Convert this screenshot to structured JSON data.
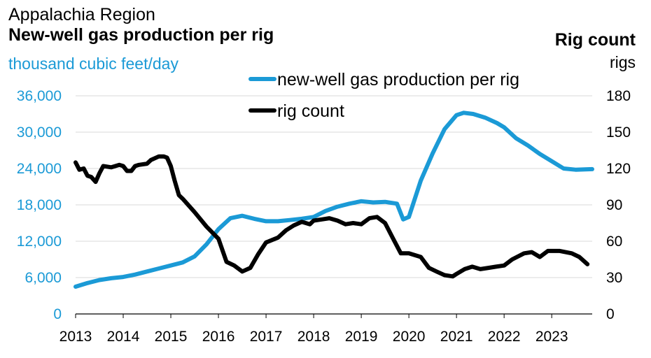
{
  "header": {
    "region": "Appalachia Region",
    "title": "New-well gas production per rig",
    "left_unit": "thousand cubic feet/day",
    "right_title": "Rig count",
    "right_unit": "rigs"
  },
  "colors": {
    "production": "#1b9ad6",
    "rigs": "#000000",
    "left_axis_text": "#1b9ad6",
    "grid": "#d9d9d9"
  },
  "chart_data": {
    "type": "line",
    "title": "New-well gas production per rig",
    "xlabel": "",
    "ylabel": "thousand cubic feet/day",
    "y2label": "rigs",
    "xlim": [
      2013.0,
      2023.85
    ],
    "ylim": [
      0,
      36000
    ],
    "y2lim": [
      0,
      180
    ],
    "x_ticks": [
      2013,
      2014,
      2015,
      2016,
      2017,
      2018,
      2019,
      2020,
      2021,
      2022,
      2023
    ],
    "x_tick_labels": [
      "2013",
      "2014",
      "2015",
      "2016",
      "2017",
      "2018",
      "2019",
      "2020",
      "2021",
      "2022",
      "2023"
    ],
    "y_ticks": [
      0,
      6000,
      12000,
      18000,
      24000,
      30000,
      36000
    ],
    "y_tick_labels": [
      "0",
      "6,000",
      "12,000",
      "18,000",
      "24,000",
      "30,000",
      "36,000"
    ],
    "y2_ticks": [
      0,
      30,
      60,
      90,
      120,
      150,
      180
    ],
    "y2_tick_labels": [
      "0",
      "30",
      "60",
      "90",
      "120",
      "150",
      "180"
    ],
    "legend_position": "top-center",
    "series": [
      {
        "name": "new-well gas production per rig",
        "axis": "left",
        "x": [
          2013.0,
          2013.25,
          2013.5,
          2013.75,
          2014.0,
          2014.25,
          2014.5,
          2014.75,
          2015.0,
          2015.25,
          2015.5,
          2015.75,
          2016.0,
          2016.25,
          2016.5,
          2016.75,
          2017.0,
          2017.25,
          2017.5,
          2017.75,
          2018.0,
          2018.25,
          2018.5,
          2018.75,
          2019.0,
          2019.25,
          2019.5,
          2019.75,
          2019.88,
          2020.0,
          2020.25,
          2020.5,
          2020.75,
          2021.0,
          2021.15,
          2021.35,
          2021.6,
          2021.85,
          2022.0,
          2022.25,
          2022.5,
          2022.75,
          2023.0,
          2023.25,
          2023.5,
          2023.85
        ],
        "values": [
          4500,
          5100,
          5600,
          5900,
          6100,
          6500,
          7000,
          7500,
          8000,
          8500,
          9500,
          11500,
          14000,
          15800,
          16200,
          15700,
          15300,
          15300,
          15500,
          15700,
          16000,
          17000,
          17700,
          18200,
          18600,
          18400,
          18500,
          18200,
          15600,
          16000,
          22000,
          26500,
          30500,
          32800,
          33200,
          33000,
          32400,
          31500,
          30800,
          29000,
          27800,
          26400,
          25200,
          24000,
          23800,
          23900
        ]
      },
      {
        "name": "rig count",
        "axis": "right",
        "x": [
          2013.0,
          2013.08,
          2013.17,
          2013.25,
          2013.33,
          2013.42,
          2013.5,
          2013.58,
          2013.75,
          2013.92,
          2014.0,
          2014.08,
          2014.17,
          2014.25,
          2014.33,
          2014.5,
          2014.58,
          2014.75,
          2014.85,
          2014.92,
          2015.0,
          2015.08,
          2015.17,
          2015.25,
          2015.5,
          2015.75,
          2016.0,
          2016.17,
          2016.33,
          2016.5,
          2016.67,
          2016.83,
          2017.0,
          2017.25,
          2017.42,
          2017.58,
          2017.75,
          2017.92,
          2018.0,
          2018.17,
          2018.33,
          2018.5,
          2018.67,
          2018.83,
          2019.0,
          2019.17,
          2019.33,
          2019.5,
          2019.67,
          2019.83,
          2020.0,
          2020.25,
          2020.42,
          2020.58,
          2020.75,
          2020.92,
          2021.0,
          2021.17,
          2021.33,
          2021.5,
          2021.67,
          2021.83,
          2022.0,
          2022.17,
          2022.42,
          2022.58,
          2022.75,
          2022.92,
          2023.0,
          2023.17,
          2023.42,
          2023.58,
          2023.75
        ],
        "values": [
          125,
          119,
          120,
          114,
          113,
          109,
          116,
          122,
          121,
          123,
          122,
          118,
          118,
          122,
          123,
          124,
          127,
          130,
          130,
          129,
          122,
          110,
          98,
          95,
          84,
          72,
          62,
          43,
          40,
          35,
          38,
          49,
          59,
          63,
          69,
          73,
          76,
          74,
          77,
          78,
          79,
          77,
          74,
          75,
          74,
          79,
          80,
          75,
          62,
          50,
          50,
          47,
          38,
          35,
          32,
          31,
          33,
          37,
          39,
          37,
          38,
          39,
          40,
          45,
          50,
          51,
          47,
          52,
          52,
          52,
          50,
          47,
          41
        ]
      }
    ]
  }
}
